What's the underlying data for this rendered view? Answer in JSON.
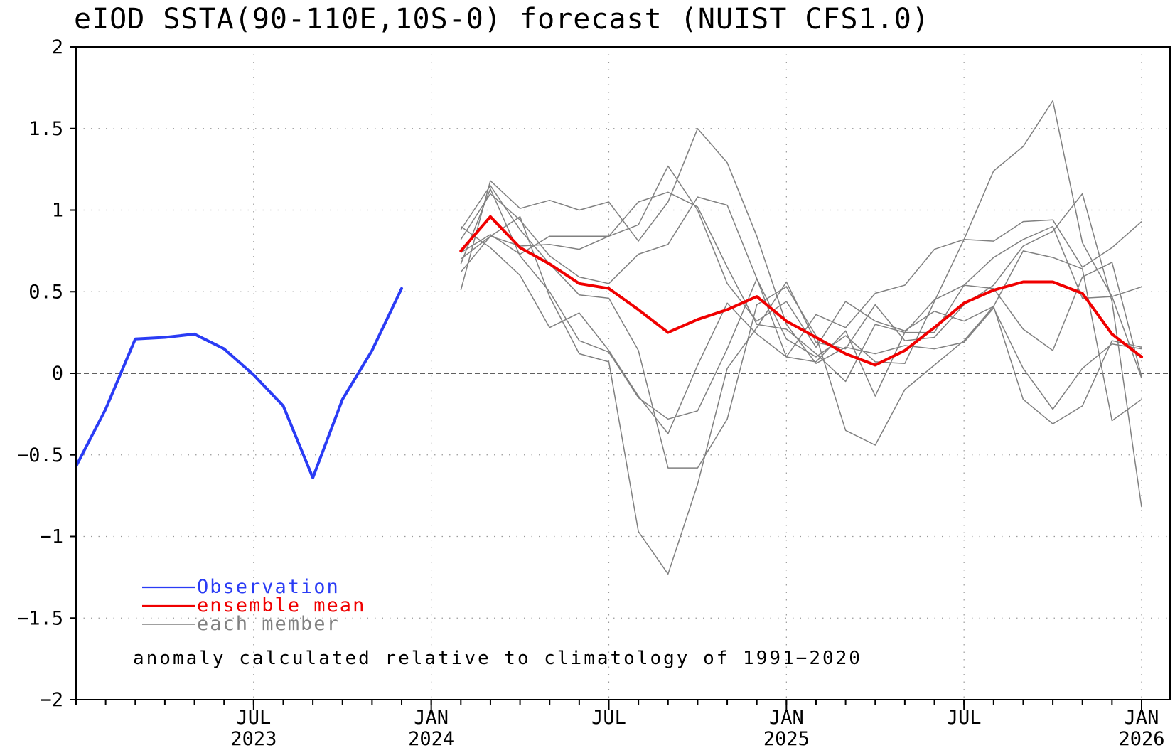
{
  "chart_data": {
    "type": "line",
    "title": "eIOD SSTA(90-110E,10S-0) forecast (NUIST CFS1.0)",
    "xlabel": "",
    "ylabel": "",
    "ylim": [
      -2,
      2
    ],
    "yticks": [
      2,
      1.5,
      1,
      0.5,
      0,
      -0.5,
      -1,
      -1.5,
      -2
    ],
    "ytick_labels": [
      "2",
      "1.5",
      "1",
      "0.5",
      "0",
      "−0.5",
      "−1",
      "−1.5",
      "−2"
    ],
    "xlim": [
      "2023-01",
      "2026-01"
    ],
    "xticks": [
      {
        "date": "2023-07",
        "month": "JUL",
        "year": "2023"
      },
      {
        "date": "2024-01",
        "month": "JAN",
        "year": "2024"
      },
      {
        "date": "2024-07",
        "month": "JUL",
        "year": ""
      },
      {
        "date": "2025-01",
        "month": "JAN",
        "year": "2025"
      },
      {
        "date": "2025-07",
        "month": "JUL",
        "year": ""
      },
      {
        "date": "2026-01",
        "month": "JAN",
        "year": "2026"
      }
    ],
    "grid": true,
    "zero_line": true,
    "legend_placement": "bottom-left",
    "annotation": "anomaly calculated relative to climatology of 1991−2020",
    "legend": [
      {
        "label": "Observation",
        "color": "#2a3cf5"
      },
      {
        "label": "ensemble mean",
        "color": "#f00000"
      },
      {
        "label": "each member",
        "color": "#808080"
      }
    ],
    "series": [
      {
        "name": "Observation",
        "color": "#2a3cf5",
        "x": [
          "2023-01",
          "2023-02",
          "2023-03",
          "2023-04",
          "2023-05",
          "2023-06",
          "2023-07",
          "2023-08",
          "2023-09",
          "2023-10",
          "2023-11",
          "2023-12",
          "2024-01"
        ],
        "values": [
          -0.57,
          -0.22,
          0.21,
          0.22,
          0.24,
          0.15,
          -0.01,
          -0.2,
          -0.64,
          -0.16,
          0.14,
          0.52,
          null
        ]
      },
      {
        "name": "ensemble mean",
        "color": "#f00000",
        "x": [
          "2024-02",
          "2024-03",
          "2024-04",
          "2024-05",
          "2024-06",
          "2024-07",
          "2024-08",
          "2024-09",
          "2024-10",
          "2024-11",
          "2024-12",
          "2025-01",
          "2025-02",
          "2025-03",
          "2025-04",
          "2025-05",
          "2025-06",
          "2025-07",
          "2025-08",
          "2025-09",
          "2025-10",
          "2025-11",
          "2025-12",
          "2026-01"
        ],
        "values": [
          0.75,
          0.96,
          0.77,
          0.67,
          0.55,
          0.52,
          0.39,
          0.25,
          0.33,
          0.39,
          0.47,
          0.32,
          0.22,
          0.12,
          0.05,
          0.14,
          0.28,
          0.43,
          0.51,
          0.56,
          0.56,
          0.49,
          0.24,
          0.1
        ]
      }
    ],
    "members": {
      "color": "#808080",
      "x": [
        "2024-02",
        "2024-03",
        "2024-04",
        "2024-05",
        "2024-06",
        "2024-07",
        "2024-08",
        "2024-09",
        "2024-10",
        "2024-11",
        "2024-12",
        "2025-01",
        "2025-02",
        "2025-03",
        "2025-04",
        "2025-05",
        "2025-06",
        "2025-07",
        "2025-08",
        "2025-09",
        "2025-10",
        "2025-11",
        "2025-12",
        "2026-01"
      ],
      "series": [
        [
          0.51,
          1.18,
          1.01,
          1.06,
          1.0,
          1.05,
          0.81,
          1.05,
          1.5,
          1.29,
          0.84,
          0.3,
          0.06,
          0.16,
          0.12,
          0.17,
          0.15,
          0.19,
          0.4,
          0.03,
          -0.22,
          0.03,
          0.18,
          0.15
        ],
        [
          0.82,
          1.1,
          0.94,
          0.72,
          0.59,
          0.55,
          0.73,
          0.79,
          1.08,
          1.03,
          0.58,
          0.1,
          0.36,
          0.28,
          0.49,
          0.54,
          0.76,
          0.82,
          0.81,
          0.93,
          0.94,
          0.65,
          0.77,
          0.93
        ],
        [
          0.88,
          1.15,
          0.88,
          0.67,
          0.48,
          0.46,
          0.14,
          -0.58,
          -0.58,
          -0.28,
          0.42,
          0.53,
          0.23,
          -0.35,
          -0.44,
          -0.1,
          0.05,
          0.2,
          0.41,
          -0.16,
          -0.31,
          -0.2,
          0.2,
          0.16
        ],
        [
          0.74,
          0.85,
          0.73,
          0.84,
          0.84,
          0.84,
          1.05,
          1.11,
          1.02,
          0.65,
          0.3,
          0.27,
          0.12,
          -0.05,
          0.3,
          0.25,
          0.45,
          0.54,
          0.71,
          0.82,
          0.9,
          0.46,
          0.47,
          0.53
        ],
        [
          0.67,
          1.13,
          0.72,
          0.5,
          0.2,
          0.13,
          -0.15,
          -0.28,
          -0.23,
          0.15,
          0.58,
          0.21,
          0.1,
          0.23,
          0.07,
          0.06,
          0.44,
          0.82,
          1.24,
          1.39,
          1.67,
          0.8,
          0.47,
          -0.03
        ],
        [
          0.9,
          0.77,
          0.6,
          0.28,
          0.37,
          0.14,
          -0.14,
          -0.37,
          0.05,
          0.43,
          0.24,
          0.1,
          0.07,
          0.26,
          -0.14,
          0.25,
          0.25,
          0.54,
          0.52,
          0.27,
          0.14,
          0.59,
          0.68,
          -0.02
        ],
        [
          0.62,
          0.84,
          0.96,
          0.47,
          0.12,
          0.07,
          -0.97,
          -1.23,
          -0.68,
          0.03,
          0.28,
          0.56,
          0.19,
          0.15,
          0.42,
          0.2,
          0.22,
          0.42,
          0.54,
          0.78,
          0.87,
          1.1,
          0.44,
          -0.82
        ],
        [
          0.7,
          0.84,
          0.78,
          0.79,
          0.76,
          0.84,
          0.91,
          1.27,
          1.0,
          0.55,
          0.32,
          0.44,
          0.16,
          0.44,
          0.32,
          0.26,
          0.38,
          0.32,
          0.41,
          0.75,
          0.71,
          0.64,
          -0.29,
          -0.16
        ]
      ]
    }
  }
}
